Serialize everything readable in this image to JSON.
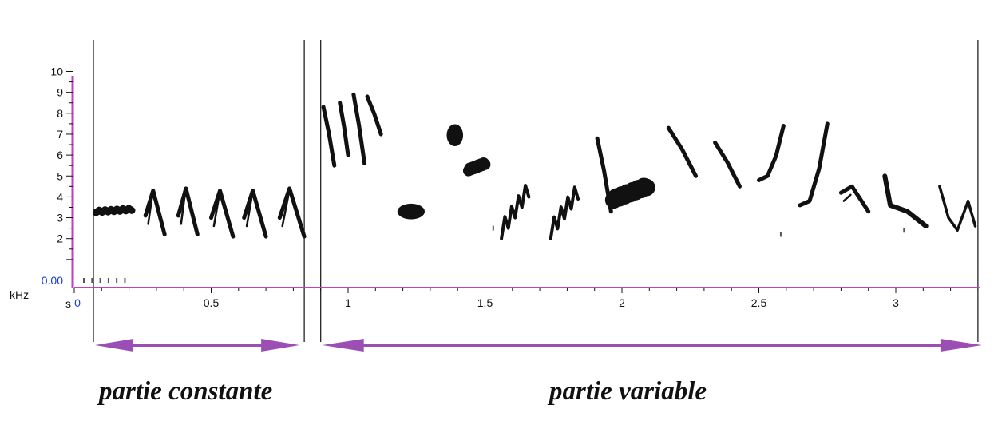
{
  "chart_data": {
    "type": "spectrogram",
    "x_unit_label": "s",
    "y_unit_label": "kHz",
    "x_tick_labels": [
      {
        "t": 0,
        "label": "0"
      },
      {
        "t": 0.5,
        "label": "0.5"
      },
      {
        "t": 1,
        "label": "1"
      },
      {
        "t": 1.5,
        "label": "1.5"
      },
      {
        "t": 2,
        "label": "2"
      },
      {
        "t": 2.5,
        "label": "2.5"
      },
      {
        "t": 3,
        "label": "3"
      }
    ],
    "y_tick_labels": [
      {
        "f": 0,
        "label": "0.00"
      },
      {
        "f": 2,
        "label": "2"
      },
      {
        "f": 3,
        "label": "3"
      },
      {
        "f": 4,
        "label": "4"
      },
      {
        "f": 5,
        "label": "5"
      },
      {
        "f": 6,
        "label": "6"
      },
      {
        "f": 7,
        "label": "7"
      },
      {
        "f": 8,
        "label": "8"
      },
      {
        "f": 9,
        "label": "9"
      },
      {
        "f": 10,
        "label": "10"
      }
    ],
    "xlim": [
      0,
      3.3
    ],
    "ylim": [
      -0.3,
      10
    ],
    "section_boundaries": [
      0.07,
      0.84,
      0.9,
      3.3
    ],
    "sections": [
      {
        "label": "partie constante",
        "start": 0.07,
        "end": 0.84
      },
      {
        "label": "partie variable",
        "start": 0.9,
        "end": 3.3
      }
    ],
    "syllables": [
      {
        "kind": "band",
        "t0": 0.08,
        "t1": 0.21,
        "f0": 3.3,
        "f1": 3.4
      },
      {
        "kind": "chevron",
        "t0": 0.26,
        "t1": 0.33,
        "fmin": 2.2,
        "fmax": 4.3
      },
      {
        "kind": "chevron",
        "t0": 0.38,
        "t1": 0.45,
        "fmin": 2.2,
        "fmax": 4.4
      },
      {
        "kind": "chevron",
        "t0": 0.5,
        "t1": 0.58,
        "fmin": 2.1,
        "fmax": 4.3
      },
      {
        "kind": "chevron",
        "t0": 0.62,
        "t1": 0.7,
        "fmin": 2.1,
        "fmax": 4.3
      },
      {
        "kind": "chevron",
        "t0": 0.75,
        "t1": 0.84,
        "fmin": 2.1,
        "fmax": 4.4
      },
      {
        "kind": "sweep",
        "t0": 0.91,
        "t1": 0.95,
        "f0": 8.3,
        "f1": 5.5
      },
      {
        "kind": "sweep",
        "t0": 0.97,
        "t1": 1.0,
        "f0": 8.5,
        "f1": 6.0
      },
      {
        "kind": "sweep",
        "t0": 1.02,
        "t1": 1.06,
        "f0": 8.9,
        "f1": 5.6
      },
      {
        "kind": "sweep",
        "t0": 1.07,
        "t1": 1.12,
        "f0": 8.8,
        "f1": 7.0
      },
      {
        "kind": "blob",
        "t0": 1.18,
        "t1": 1.28,
        "f0": 3.0,
        "f1": 3.6
      },
      {
        "kind": "blob",
        "t0": 1.36,
        "t1": 1.42,
        "f0": 6.5,
        "f1": 7.4
      },
      {
        "kind": "band",
        "t0": 1.44,
        "t1": 1.5,
        "f0": 5.3,
        "f1": 5.6
      },
      {
        "kind": "chirp",
        "t0": 1.56,
        "t1": 1.66,
        "f0": 2.3,
        "f1": 4.3
      },
      {
        "kind": "chirp",
        "t0": 1.74,
        "t1": 1.84,
        "f0": 2.3,
        "f1": 4.2
      },
      {
        "kind": "sweep",
        "t0": 1.91,
        "t1": 1.96,
        "f0": 6.8,
        "f1": 3.3
      },
      {
        "kind": "band",
        "t0": 1.97,
        "t1": 2.09,
        "f0": 3.9,
        "f1": 4.5
      },
      {
        "kind": "sweep",
        "t0": 2.17,
        "t1": 2.27,
        "f0": 7.3,
        "f1": 5.0
      },
      {
        "kind": "sweep",
        "t0": 2.34,
        "t1": 2.43,
        "f0": 6.6,
        "f1": 4.5
      },
      {
        "kind": "hook",
        "t0": 2.5,
        "t1": 2.59,
        "f0": 4.8,
        "f1": 7.4
      },
      {
        "kind": "hook",
        "t0": 2.65,
        "t1": 2.75,
        "f0": 3.6,
        "f1": 7.5
      },
      {
        "kind": "chevron",
        "t0": 2.8,
        "t1": 2.9,
        "fmin": 3.3,
        "fmax": 4.5
      },
      {
        "kind": "dip",
        "t0": 2.96,
        "t1": 3.11,
        "f0": 5.0,
        "f1": 2.6
      },
      {
        "kind": "ushape",
        "t0": 3.16,
        "t1": 3.29,
        "f0": 4.5,
        "f1": 2.4,
        "f2": 3.8
      }
    ],
    "noise_marks": [
      {
        "t": 0.035,
        "f": 0.0
      },
      {
        "t": 0.065,
        "f": 0.0
      },
      {
        "t": 0.095,
        "f": 0.0
      },
      {
        "t": 0.125,
        "f": 0.0
      },
      {
        "t": 0.155,
        "f": 0.0
      },
      {
        "t": 0.185,
        "f": 0.0
      },
      {
        "t": 1.53,
        "f": 2.5
      },
      {
        "t": 2.58,
        "f": 2.2
      },
      {
        "t": 3.03,
        "f": 2.4
      }
    ],
    "colors": {
      "axis": "#c040c0",
      "zero_label": "#1a3dd6",
      "ink": "#111111",
      "arrow": "#9b4fb5",
      "divider": "#111111"
    }
  }
}
